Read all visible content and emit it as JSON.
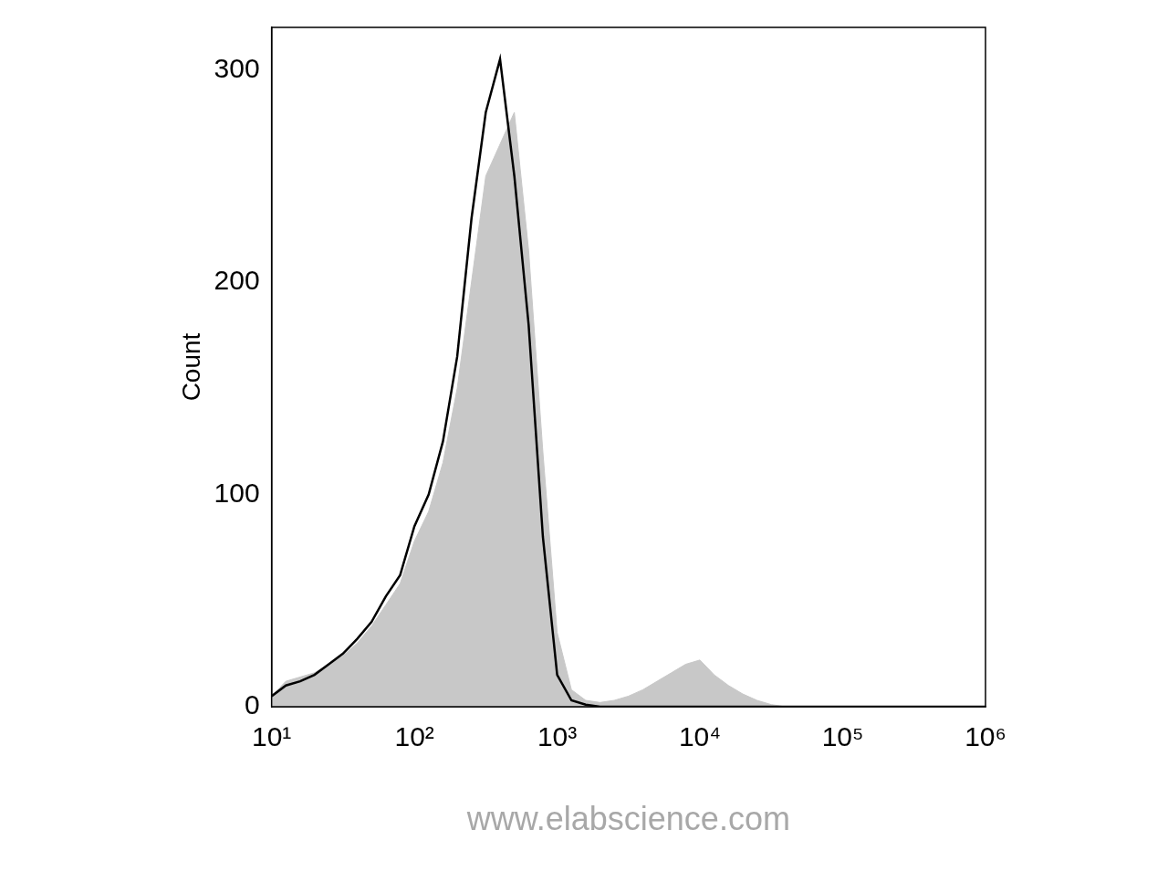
{
  "chart_data": {
    "type": "line",
    "y_label": "Count",
    "annotations": [
      "www.elabscience.com"
    ],
    "log": "x",
    "grid": false,
    "xlim": [
      10,
      1000000
    ],
    "xticks": [
      {
        "value": 10,
        "label": "10¹"
      },
      {
        "value": 100,
        "label": "10²"
      },
      {
        "value": 1000,
        "label": "10³"
      },
      {
        "value": 10000,
        "label": "10⁴"
      },
      {
        "value": 100000,
        "label": "10⁵"
      },
      {
        "value": 1000000,
        "label": "10⁶"
      }
    ],
    "ylim": [
      0,
      320
    ],
    "yticks": [
      0,
      100,
      200,
      300
    ],
    "x": [
      10,
      12.59,
      15.85,
      19.95,
      25.12,
      31.62,
      39.81,
      50.12,
      63.1,
      79.43,
      100,
      125.9,
      158.5,
      199.5,
      251.2,
      316.2,
      398.1,
      501.2,
      631,
      794.3,
      1000,
      1259,
      1585,
      1995,
      2512,
      3162,
      3981,
      5012,
      6310,
      7943,
      10000,
      12590,
      15850,
      19950,
      25120,
      31620,
      39810,
      50120,
      63100,
      79430,
      100000,
      125900,
      158500,
      199500,
      251200,
      316200,
      398100,
      501200,
      631000,
      794300,
      1000000
    ],
    "series": [
      {
        "color": "#c8c8c8",
        "type": "area",
        "values": [
          5,
          12,
          14,
          16,
          20,
          24,
          30,
          38,
          48,
          58,
          78,
          92,
          115,
          150,
          200,
          250,
          265,
          280,
          215,
          120,
          35,
          8,
          3,
          2,
          3,
          5,
          8,
          12,
          16,
          20,
          22,
          15,
          10,
          6,
          3,
          1,
          0,
          0,
          0,
          0,
          0,
          0,
          0,
          0,
          0,
          0,
          0,
          0,
          0,
          0,
          0
        ]
      },
      {
        "color": "#000000",
        "type": "line",
        "values": [
          5,
          10,
          12,
          15,
          20,
          25,
          32,
          40,
          52,
          62,
          85,
          100,
          125,
          165,
          230,
          280,
          305,
          250,
          180,
          80,
          15,
          3,
          1,
          0,
          0,
          0,
          0,
          0,
          0,
          0,
          0,
          0,
          0,
          0,
          0,
          0,
          0,
          0,
          0,
          0,
          0,
          0,
          0,
          0,
          0,
          0,
          0,
          0,
          0,
          0,
          0
        ]
      }
    ]
  }
}
